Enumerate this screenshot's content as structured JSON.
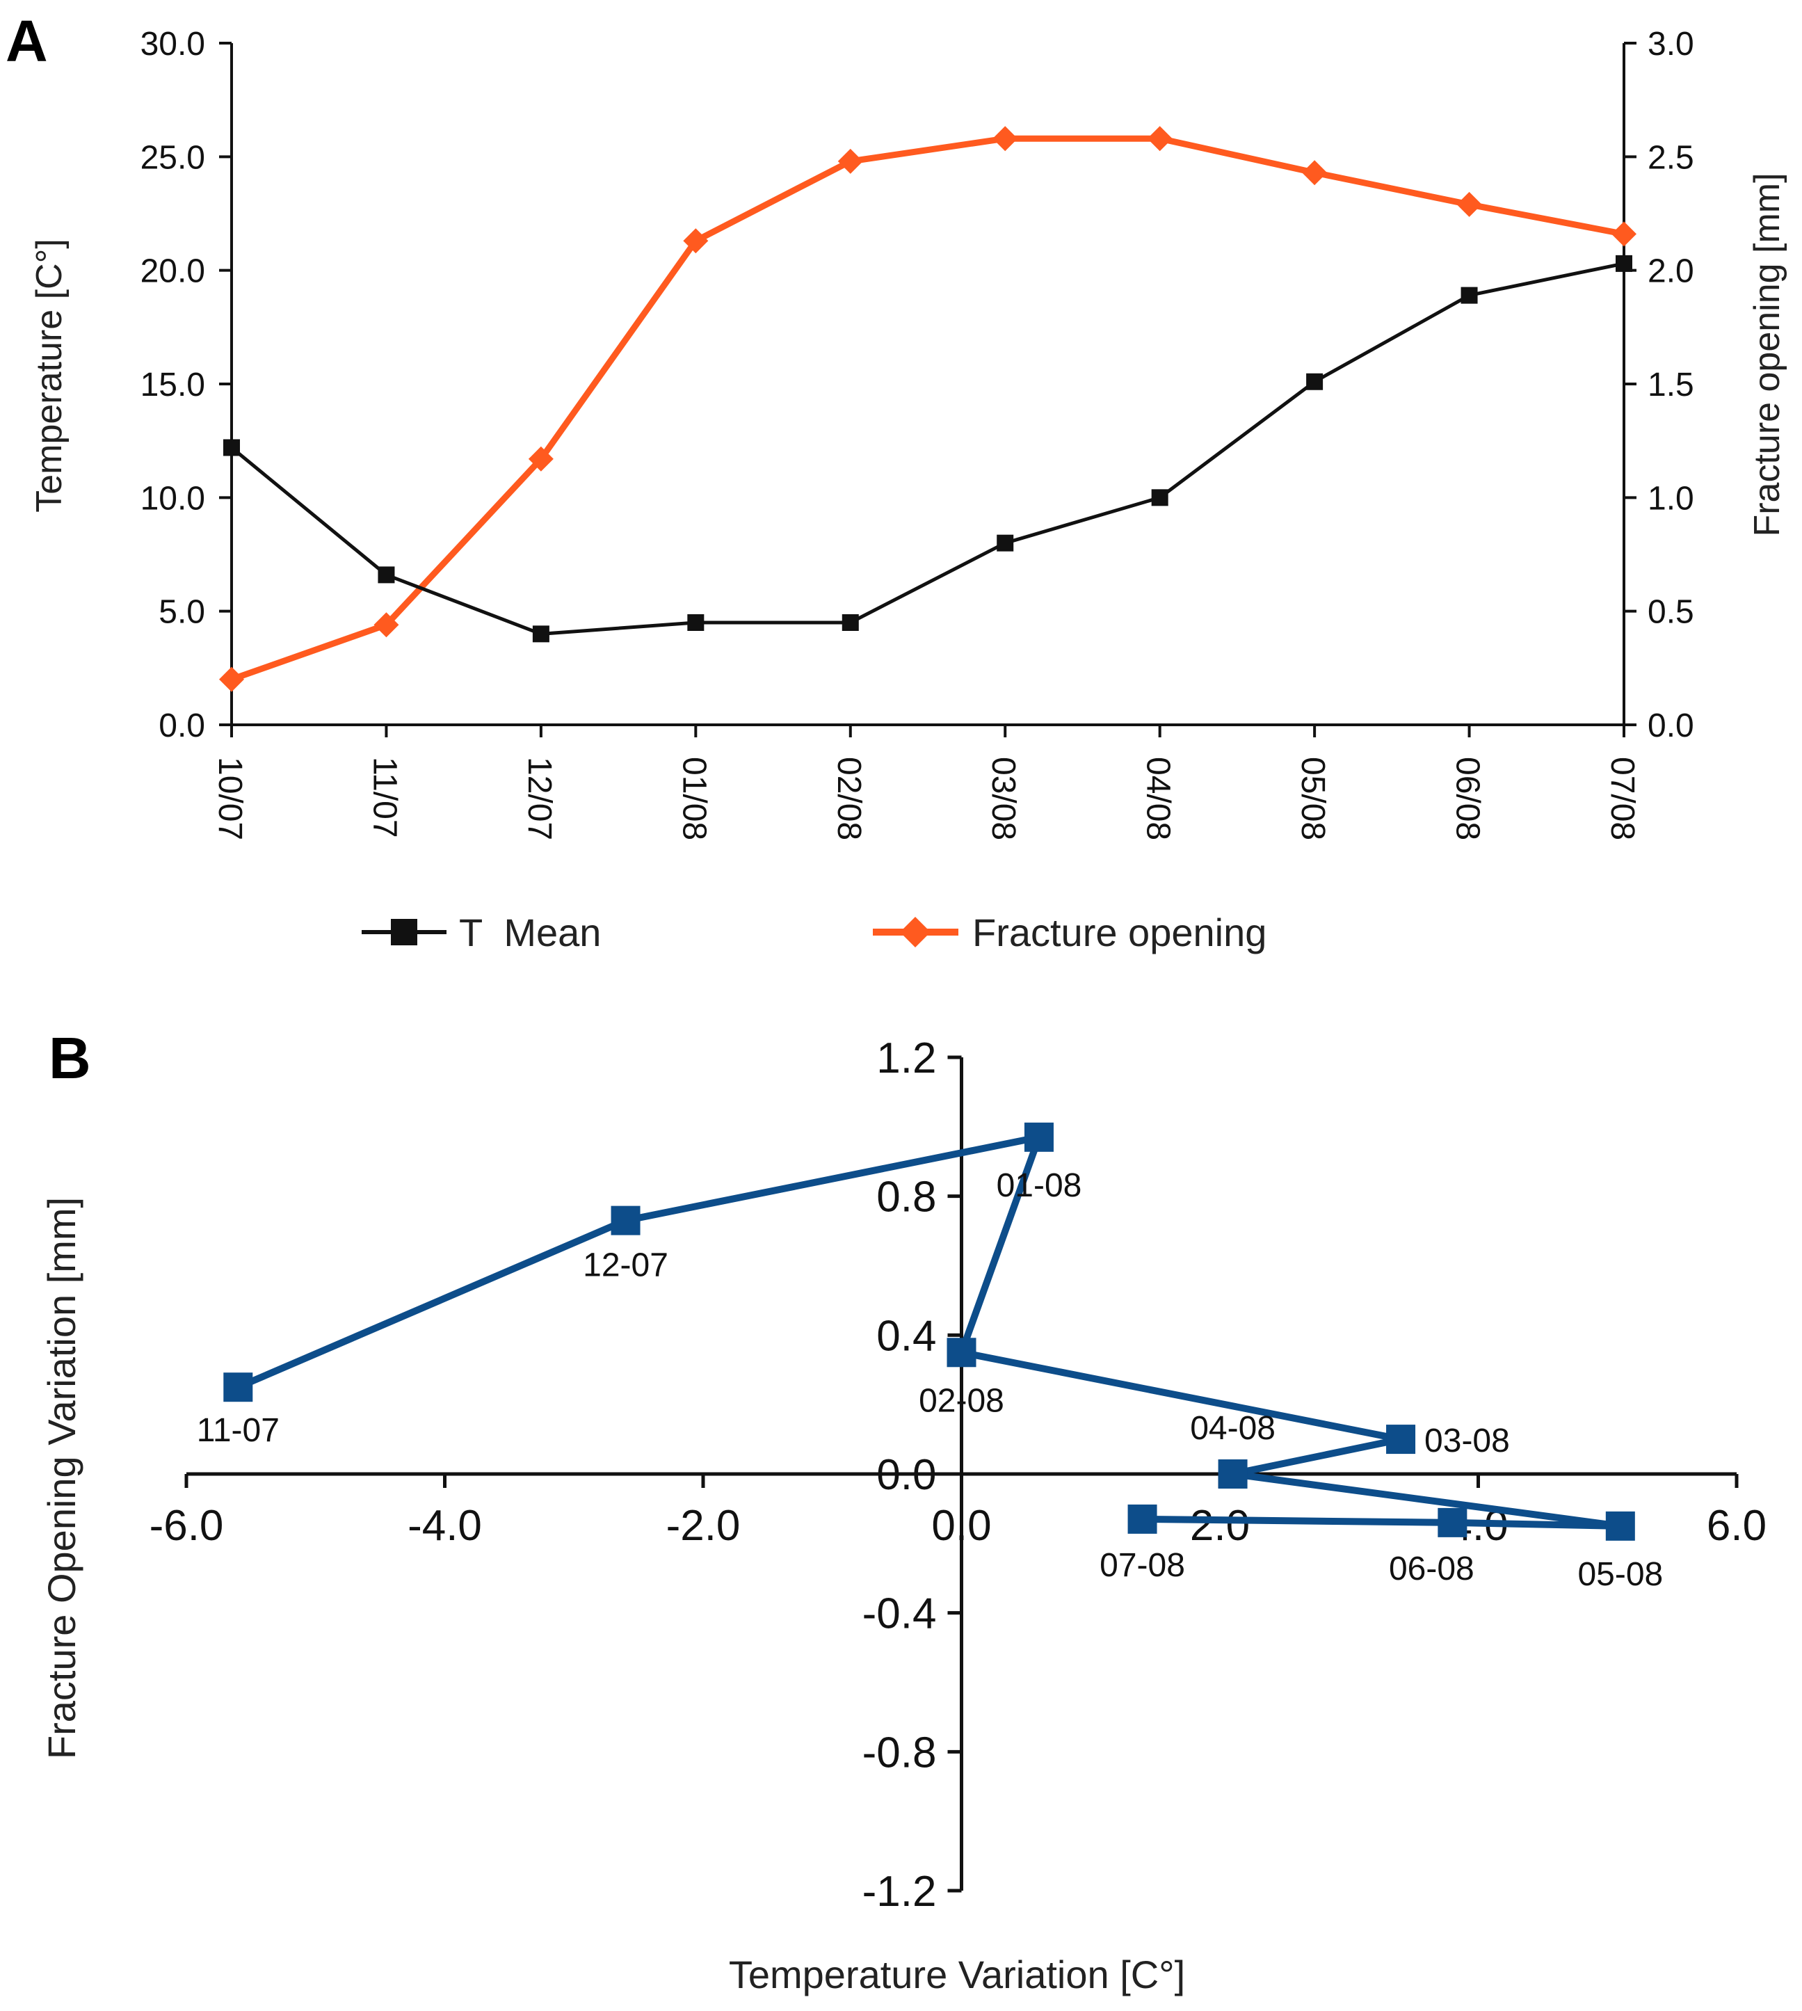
{
  "chart_data": [
    {
      "panel": "A",
      "type": "line",
      "categories": [
        "10/07",
        "11/07",
        "12/07",
        "01/08",
        "02/08",
        "03/08",
        "04/08",
        "05/08",
        "06/08",
        "07/08"
      ],
      "series": [
        {
          "name": "T  Mean",
          "axis": "left",
          "color": "#111111",
          "marker": "square",
          "values": [
            12.2,
            6.6,
            4.0,
            4.5,
            4.5,
            8.0,
            10.0,
            15.1,
            18.9,
            20.3
          ]
        },
        {
          "name": "Fracture opening",
          "axis": "right",
          "color": "#ff5a1f",
          "marker": "diamond",
          "values": [
            0.2,
            0.44,
            1.17,
            2.13,
            2.48,
            2.58,
            2.58,
            2.43,
            2.29,
            2.16
          ]
        }
      ],
      "ylabel": "Temperature [C°]",
      "ylabel_right": "Fracture opening [mm]",
      "ylim": [
        0,
        30
      ],
      "ylim_right": [
        0,
        3
      ],
      "yticks": [
        "0.0",
        "5.0",
        "10.0",
        "15.0",
        "20.0",
        "25.0",
        "30.0"
      ],
      "yticks_right": [
        "0.0",
        "0.5",
        "1.0",
        "1.5",
        "2.0",
        "2.5",
        "3.0"
      ],
      "legend_position": "bottom"
    },
    {
      "panel": "B",
      "type": "scatter",
      "xlabel": "Temperature Variation [C°]",
      "ylabel": "Fracture Opening Variation [mm]",
      "xlim": [
        -6,
        6
      ],
      "ylim": [
        -1.2,
        1.2
      ],
      "xticks": [
        "-6.0",
        "-4.0",
        "-2.0",
        "0.0",
        "2.0",
        "4.0",
        "6.0"
      ],
      "yticks": [
        "-1.2",
        "-0.8",
        "-0.4",
        "0.0",
        "0.4",
        "0.8",
        "1.2"
      ],
      "color": "#0d4d8a",
      "points": [
        {
          "label": "11-07",
          "x": -5.6,
          "y": 0.25
        },
        {
          "label": "12-07",
          "x": -2.6,
          "y": 0.73
        },
        {
          "label": "01-08",
          "x": 0.6,
          "y": 0.97
        },
        {
          "label": "02-08",
          "x": 0.0,
          "y": 0.35
        },
        {
          "label": "03-08",
          "x": 3.4,
          "y": 0.1
        },
        {
          "label": "04-08",
          "x": 2.1,
          "y": 0.0
        },
        {
          "label": "05-08",
          "x": 5.1,
          "y": -0.15
        },
        {
          "label": "06-08",
          "x": 3.8,
          "y": -0.14
        },
        {
          "label": "07-08",
          "x": 1.4,
          "y": -0.13
        }
      ]
    }
  ],
  "panels": {
    "a": "A",
    "b": "B"
  }
}
